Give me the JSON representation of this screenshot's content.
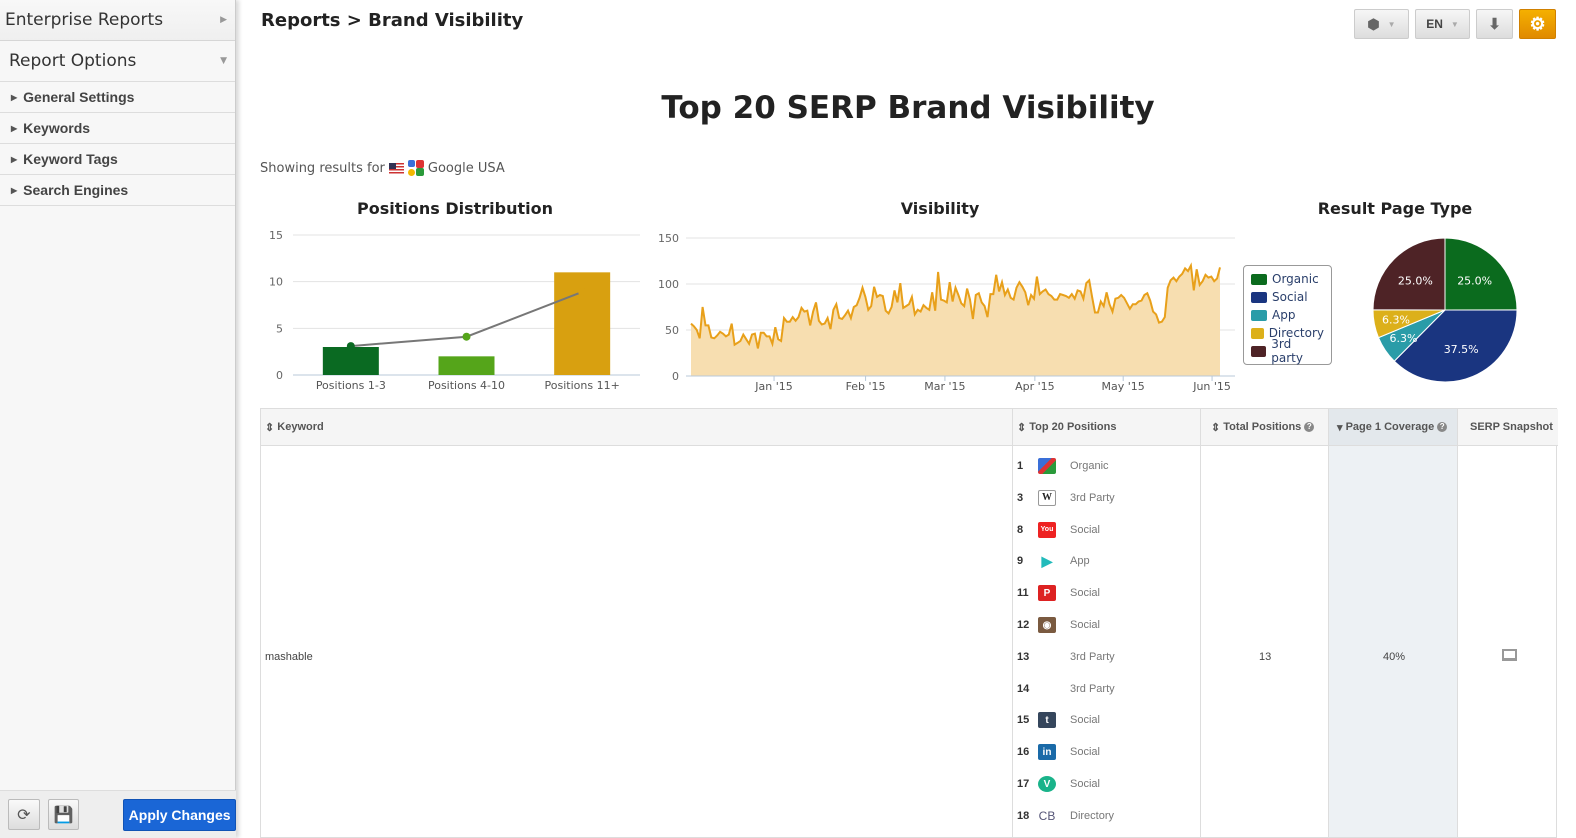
{
  "sidebar": {
    "title": "Enterprise Reports",
    "section": "Report Options",
    "items": [
      {
        "label": "General Settings"
      },
      {
        "label": "Keywords"
      },
      {
        "label": "Keyword Tags"
      },
      {
        "label": "Search Engines"
      }
    ],
    "apply_label": "Apply Changes"
  },
  "header": {
    "breadcrumb": "Reports > Brand Visibility",
    "lang": "EN"
  },
  "report": {
    "title": "Top 20 SERP Brand Visibility",
    "showing_prefix": "Showing results for",
    "engine": "Google USA"
  },
  "colors": {
    "accent": "#e8a000",
    "apply": "#1a66d6",
    "line": "#e8a01a",
    "area": "#f7deb0"
  },
  "chart_data": [
    {
      "type": "bar",
      "title": "Positions Distribution",
      "categories": [
        "Positions 1-3",
        "Positions 4-10",
        "Positions 11+"
      ],
      "values": [
        3,
        2,
        11
      ],
      "line_values": [
        3.1,
        4.1,
        8.9
      ],
      "bar_colors": [
        "#0a6a22",
        "#55a51a",
        "#d8a010"
      ],
      "ylim": [
        0,
        15
      ],
      "yticks": [
        0,
        5,
        10,
        15
      ]
    },
    {
      "type": "area",
      "title": "Visibility",
      "ylim": [
        0,
        150
      ],
      "yticks": [
        0,
        50,
        100,
        150
      ],
      "xticks": [
        {
          "label": "Jan '15",
          "at": 0.157
        },
        {
          "label": "Feb '15",
          "at": 0.33
        },
        {
          "label": "Mar '15",
          "at": 0.48
        },
        {
          "label": "Apr '15",
          "at": 0.65
        },
        {
          "label": "May '15",
          "at": 0.817
        },
        {
          "label": "Jun '15",
          "at": 0.985
        }
      ],
      "values": [
        57,
        54,
        50,
        41,
        75,
        55,
        55,
        42,
        41,
        44,
        48,
        46,
        43,
        45,
        57,
        34,
        36,
        38,
        45,
        40,
        35,
        45,
        46,
        30,
        47,
        47,
        43,
        43,
        35,
        53,
        40,
        38,
        63,
        59,
        59,
        64,
        60,
        64,
        74,
        70,
        71,
        55,
        70,
        80,
        60,
        56,
        57,
        63,
        51,
        72,
        78,
        63,
        62,
        66,
        71,
        63,
        75,
        77,
        85,
        96,
        86,
        72,
        76,
        97,
        86,
        88,
        87,
        71,
        68,
        75,
        93,
        80,
        101,
        74,
        76,
        78,
        86,
        67,
        72,
        70,
        77,
        74,
        72,
        91,
        71,
        113,
        83,
        82,
        80,
        102,
        81,
        96,
        88,
        79,
        76,
        95,
        83,
        62,
        88,
        90,
        80,
        76,
        64,
        89,
        89,
        110,
        92,
        102,
        88,
        94,
        85,
        83,
        96,
        102,
        97,
        91,
        77,
        88,
        84,
        108,
        89,
        92,
        94,
        89,
        87,
        83,
        83,
        89,
        88,
        87,
        85,
        89,
        84,
        93,
        92,
        84,
        101,
        104,
        86,
        69,
        69,
        81,
        76,
        91,
        78,
        70,
        84,
        85,
        88,
        85,
        79,
        73,
        78,
        78,
        81,
        82,
        88,
        90,
        82,
        70,
        67,
        58,
        59,
        64,
        96,
        104,
        107,
        103,
        108,
        111,
        117,
        114,
        120,
        93,
        116,
        99,
        103,
        110,
        107,
        108,
        103,
        106,
        118
      ]
    },
    {
      "type": "pie",
      "title": "Result Page Type",
      "slices": [
        {
          "name": "Organic",
          "value": 25.0,
          "label": "25.0%",
          "color": "#0b6b1e"
        },
        {
          "name": "Social",
          "value": 37.5,
          "label": "37.5%",
          "color": "#1a3580"
        },
        {
          "name": "App",
          "value": 6.3,
          "label": "6.3%",
          "color": "#2a9ca8"
        },
        {
          "name": "Directory",
          "value": 6.3,
          "label": "6.3%",
          "color": "#dcb01a"
        },
        {
          "name": "3rd party",
          "value": 25.0,
          "label": "25.0%",
          "color": "#4e2326"
        }
      ]
    }
  ],
  "table": {
    "headers": [
      "Keyword",
      "Top 20 Positions",
      "Total Positions",
      "Page 1 Coverage",
      "SERP Snapshot"
    ],
    "row": {
      "keyword": "mashable",
      "total": "13",
      "coverage": "40%",
      "positions": [
        {
          "n": "1",
          "icon": "google-icon",
          "type": "Organic"
        },
        {
          "n": "3",
          "icon": "wikipedia-icon",
          "type": "3rd Party"
        },
        {
          "n": "8",
          "icon": "youtube-icon",
          "type": "Social"
        },
        {
          "n": "9",
          "icon": "google-play-icon",
          "type": "App"
        },
        {
          "n": "11",
          "icon": "pinterest-icon",
          "type": "Social"
        },
        {
          "n": "12",
          "icon": "instagram-icon",
          "type": "Social"
        },
        {
          "n": "13",
          "icon": "",
          "type": "3rd Party"
        },
        {
          "n": "14",
          "icon": "",
          "type": "3rd Party"
        },
        {
          "n": "15",
          "icon": "tumblr-icon",
          "type": "Social"
        },
        {
          "n": "16",
          "icon": "linkedin-icon",
          "type": "Social"
        },
        {
          "n": "17",
          "icon": "vine-icon",
          "type": "Social"
        },
        {
          "n": "18",
          "icon": "crunchbase-icon",
          "type": "Directory"
        }
      ]
    }
  }
}
